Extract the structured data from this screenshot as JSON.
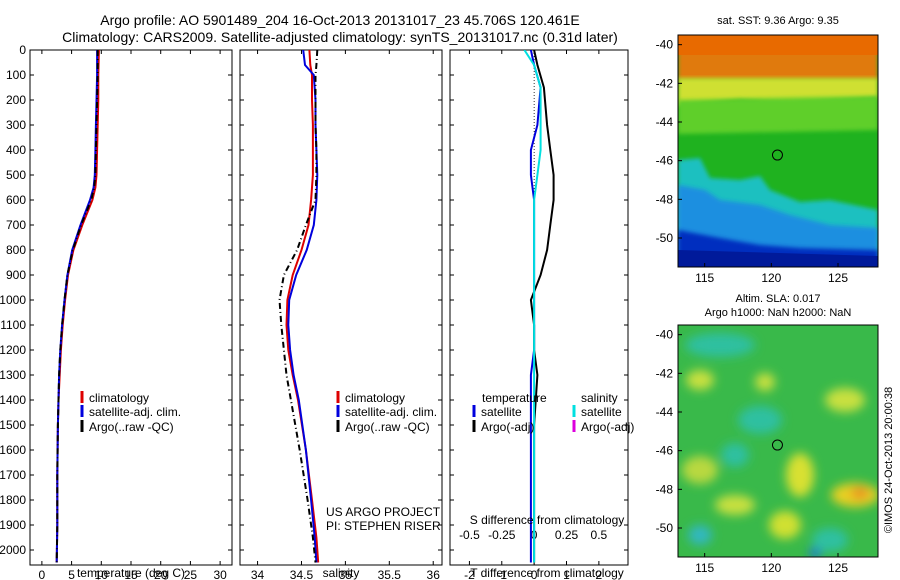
{
  "header": {
    "line1": "Argo profile: AO 5901489_204 16-Oct-2013 20131017_23 45.706S 120.461E",
    "line2": "Climatology: CARS2009. Satellite-adjusted climatology: synTS_20131017.nc (0.31d later)"
  },
  "colors": {
    "climatology": "#dd0000",
    "satellite": "#0000dd",
    "argo": "#000000",
    "sal_satellite": "#00e0e0",
    "sal_argo": "#dd00dd"
  },
  "chart_data": [
    {
      "type": "line",
      "id": "temperature",
      "xlabel": "temperature (deg C)",
      "ylabel": "",
      "xlim": [
        -2,
        32
      ],
      "ylim": [
        2060,
        0
      ],
      "xticks": [
        0,
        5,
        10,
        15,
        20,
        25,
        30
      ],
      "yticks": [
        0,
        100,
        200,
        300,
        400,
        500,
        600,
        700,
        800,
        900,
        1000,
        1100,
        1200,
        1300,
        1400,
        1500,
        1600,
        1700,
        1800,
        1900,
        2000
      ],
      "legend_position": "center",
      "legend": [
        "climatology",
        "satellite-adj. clim.",
        "Argo(..raw -QC)"
      ],
      "series": [
        {
          "name": "climatology",
          "color": "#dd0000",
          "dash": "",
          "x": [
            9.6,
            9.5,
            9.5,
            9.4,
            9.3,
            9.2,
            9.0,
            8.5,
            6.8,
            5.3,
            4.4,
            3.9,
            3.5,
            3.2,
            3.0,
            2.8,
            2.7,
            2.6,
            2.6,
            2.5
          ],
          "y": [
            0,
            100,
            200,
            300,
            400,
            500,
            550,
            600,
            700,
            800,
            900,
            1000,
            1100,
            1200,
            1300,
            1400,
            1500,
            1700,
            1900,
            2050
          ]
        },
        {
          "name": "satellite-adj. clim.",
          "color": "#0000dd",
          "dash": "",
          "x": [
            9.3,
            9.3,
            9.2,
            9.1,
            9.0,
            8.9,
            8.7,
            8.1,
            6.5,
            5.1,
            4.3,
            3.8,
            3.4,
            3.1,
            2.9,
            2.8,
            2.7,
            2.6,
            2.6,
            2.5
          ],
          "y": [
            0,
            100,
            200,
            300,
            400,
            500,
            550,
            600,
            700,
            800,
            900,
            1000,
            1100,
            1200,
            1300,
            1400,
            1500,
            1700,
            1900,
            2050
          ]
        },
        {
          "name": "Argo(..raw -QC)",
          "color": "#000000",
          "dash": "6,3,1,3",
          "x": [
            9.4,
            9.4,
            9.3,
            9.2,
            9.1,
            9.0,
            8.8,
            8.3,
            6.6,
            5.2,
            4.3,
            3.8,
            3.4,
            3.1,
            2.9,
            2.8,
            2.7,
            2.6,
            2.6,
            2.5
          ],
          "y": [
            0,
            100,
            200,
            300,
            400,
            500,
            550,
            600,
            700,
            800,
            900,
            1000,
            1100,
            1200,
            1300,
            1400,
            1500,
            1700,
            1900,
            2050
          ]
        }
      ]
    },
    {
      "type": "line",
      "id": "salinity",
      "xlabel": "salinity",
      "ylabel": "",
      "xlim": [
        33.8,
        36.1
      ],
      "ylim": [
        2060,
        0
      ],
      "xticks": [
        34,
        34.5,
        35,
        35.5,
        36
      ],
      "legend_position": "center",
      "legend": [
        "climatology",
        "satellite-adj. clim.",
        "Argo(..raw -QC)"
      ],
      "annotation": [
        "US ARGO PROJECT",
        "PI: STEPHEN RISER"
      ],
      "series": [
        {
          "name": "climatology",
          "color": "#dd0000",
          "dash": "",
          "x": [
            34.59,
            34.6,
            34.62,
            34.62,
            34.63,
            34.63,
            34.63,
            34.61,
            34.58,
            34.5,
            34.4,
            34.34,
            34.33,
            34.35,
            34.4,
            34.46,
            34.55,
            34.62,
            34.67,
            34.69
          ],
          "y": [
            0,
            60,
            100,
            200,
            300,
            400,
            500,
            600,
            700,
            800,
            900,
            1000,
            1100,
            1200,
            1300,
            1400,
            1600,
            1800,
            1950,
            2050
          ]
        },
        {
          "name": "satellite-adj. clim.",
          "color": "#0000dd",
          "dash": "",
          "x": [
            34.52,
            34.54,
            34.64,
            34.66,
            34.66,
            34.67,
            34.68,
            34.67,
            34.64,
            34.56,
            34.44,
            34.36,
            34.35,
            34.37,
            34.41,
            34.47,
            34.55,
            34.61,
            34.65,
            34.67
          ],
          "y": [
            0,
            60,
            100,
            200,
            300,
            400,
            500,
            600,
            700,
            800,
            900,
            1000,
            1100,
            1200,
            1300,
            1400,
            1600,
            1800,
            1950,
            2050
          ]
        },
        {
          "name": "Argo(..raw -QC)",
          "color": "#000000",
          "dash": "6,3,1,3",
          "x": [
            34.68,
            34.67,
            34.66,
            34.66,
            34.66,
            34.67,
            34.67,
            34.66,
            34.55,
            34.45,
            34.3,
            34.25,
            34.27,
            34.3,
            34.33,
            34.38,
            34.48,
            34.57,
            34.63,
            34.66
          ],
          "y": [
            0,
            60,
            100,
            200,
            300,
            400,
            500,
            600,
            700,
            800,
            900,
            1000,
            1100,
            1200,
            1300,
            1400,
            1600,
            1800,
            1950,
            2050
          ]
        }
      ]
    },
    {
      "type": "line",
      "id": "differences",
      "xlabel": "T difference from climatology",
      "top_axis_label": "S difference from climatology",
      "ylabel": "",
      "xlim": [
        -2.6,
        2.9
      ],
      "ylim": [
        2060,
        0
      ],
      "xticks": [
        -2,
        -1,
        0,
        1,
        2
      ],
      "top_ticks": [
        -0.5,
        -0.25,
        0,
        0.25,
        0.5
      ],
      "legend_position": "center",
      "legend_groups": [
        {
          "title": "temperature",
          "items": [
            "satellite",
            "Argo(-adj)"
          ]
        },
        {
          "title": "salinity",
          "items": [
            "satellite",
            "Argo(-adj)"
          ]
        }
      ],
      "series": [
        {
          "name": "temperature satellite",
          "color": "#0000dd",
          "dash": "",
          "x": [
            -0.1,
            0.0,
            0.2,
            0.1,
            -0.1,
            -0.1,
            0.0,
            0.0,
            0.0,
            0.0,
            0.0,
            0.0,
            0.0,
            -0.1,
            -0.1,
            -0.1,
            -0.1,
            -0.1
          ],
          "y": [
            0,
            60,
            150,
            300,
            400,
            500,
            600,
            700,
            800,
            900,
            1000,
            1100,
            1200,
            1300,
            1500,
            1700,
            1900,
            2050
          ]
        },
        {
          "name": "temperature Argo(-adj)",
          "color": "#000000",
          "dash": "",
          "x": [
            0.0,
            0.1,
            0.3,
            0.4,
            0.5,
            0.6,
            0.6,
            0.5,
            0.4,
            0.2,
            -0.1,
            0.0,
            0.0,
            0.1,
            0.0,
            0.0,
            0.0,
            0.0
          ],
          "y": [
            0,
            60,
            150,
            300,
            400,
            500,
            600,
            700,
            800,
            900,
            1000,
            1100,
            1200,
            1300,
            1500,
            1700,
            1900,
            2050
          ]
        },
        {
          "name": "salinity satellite",
          "color": "#00e0e0",
          "dash": "",
          "x": [
            -0.3,
            0.0,
            0.2,
            0.2,
            0.2,
            0.1,
            0.0,
            0.0,
            0.0,
            0.0,
            0.0,
            0.0,
            0.0,
            0.0,
            0.0,
            0.0,
            0.0,
            0.0
          ],
          "y": [
            0,
            60,
            150,
            300,
            400,
            500,
            600,
            700,
            800,
            900,
            1000,
            1100,
            1200,
            1300,
            1500,
            1700,
            1900,
            2050
          ]
        }
      ]
    },
    {
      "type": "heatmap",
      "id": "sst_map",
      "title": "sat. SST: 9.36 Argo: 9.35",
      "xlim": [
        113,
        128
      ],
      "ylim": [
        -51.5,
        -39.5
      ],
      "xticks": [
        115,
        120,
        125
      ],
      "yticks": [
        -40,
        -42,
        -44,
        -46,
        -48,
        -50
      ],
      "marker": {
        "x": 120.46,
        "y": -45.71
      }
    },
    {
      "type": "heatmap",
      "id": "sla_map",
      "title_line1": "Altim. SLA: 0.017",
      "title_line2": "Argo h1000: NaN h2000: NaN",
      "xlim": [
        113,
        128
      ],
      "ylim": [
        -51.5,
        -39.5
      ],
      "xticks": [
        115,
        120,
        125
      ],
      "yticks": [
        -40,
        -42,
        -44,
        -46,
        -48,
        -50
      ],
      "marker": {
        "x": 120.46,
        "y": -45.71
      },
      "side_label": "©IMOS 24-Oct-2013 20:00:38"
    }
  ]
}
